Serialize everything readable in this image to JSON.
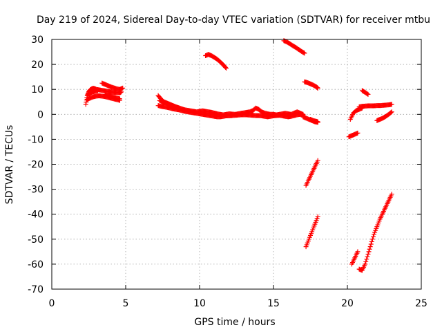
{
  "chart_data": {
    "type": "scatter",
    "title": "Day 219 of 2024, Sidereal Day-to-day VTEC variation (SDTVAR) for receiver mtbu",
    "xlabel": "GPS time / hours",
    "ylabel": "SDTVAR / TECUs",
    "xlim": [
      0,
      25
    ],
    "ylim": [
      -70,
      30
    ],
    "xticks": [
      0,
      5,
      10,
      15,
      20,
      25
    ],
    "yticks": [
      -70,
      -60,
      -50,
      -40,
      -30,
      -20,
      -10,
      0,
      10,
      20,
      30
    ],
    "grid": true,
    "marker": "plus",
    "color": "#ff0000",
    "segments": [
      {
        "x": [
          2.3,
          2.4,
          2.5,
          2.6,
          2.7,
          2.8,
          2.9,
          3.0,
          3.2,
          3.4,
          3.6,
          3.8,
          4.0,
          4.2,
          4.4,
          4.6,
          4.7
        ],
        "y": [
          4.0,
          7.5,
          9.0,
          9.8,
          10.2,
          10.4,
          10.3,
          10.0,
          9.8,
          9.6,
          9.4,
          9.2,
          9.0,
          8.8,
          8.7,
          8.6,
          9.0
        ]
      },
      {
        "x": [
          2.4,
          2.6,
          2.8,
          3.0,
          3.2,
          3.4,
          3.6,
          3.8,
          4.0,
          4.2,
          4.4,
          4.6
        ],
        "y": [
          6.0,
          6.5,
          7.0,
          7.3,
          7.4,
          7.3,
          7.1,
          6.8,
          6.5,
          6.2,
          5.9,
          5.6
        ]
      },
      {
        "x": [
          2.5,
          2.6,
          2.7,
          2.9,
          3.1
        ],
        "y": [
          8.0,
          8.5,
          8.8,
          9.2,
          9.4
        ]
      },
      {
        "x": [
          3.4,
          3.6,
          3.8,
          4.0,
          4.2,
          4.4,
          4.6,
          4.8
        ],
        "y": [
          12.5,
          12.0,
          11.5,
          11.0,
          10.6,
          10.2,
          10.0,
          10.5
        ]
      },
      {
        "x": [
          3.6,
          3.8,
          4.0,
          4.2,
          4.4,
          4.6
        ],
        "y": [
          8.0,
          7.6,
          7.2,
          6.8,
          6.5,
          6.2
        ]
      },
      {
        "x": [
          7.2,
          7.4,
          7.6,
          7.8,
          8.0,
          8.2,
          8.4,
          8.6,
          8.8,
          9.0,
          9.2,
          9.4,
          9.6,
          9.8,
          10.0,
          10.2,
          10.4,
          10.6,
          10.8,
          11.0,
          11.2,
          11.4,
          11.6,
          11.8,
          12.0,
          12.2,
          12.4,
          12.6,
          12.8,
          13.0,
          13.2,
          13.4,
          13.6,
          13.8,
          14.0,
          14.2,
          14.4,
          14.6,
          14.8,
          15.0,
          15.2,
          15.4,
          15.6,
          15.8,
          16.0,
          16.2,
          16.4,
          16.6,
          16.8,
          17.0
        ],
        "y": [
          7.5,
          6.0,
          5.0,
          4.5,
          4.0,
          3.5,
          3.0,
          2.6,
          2.2,
          1.8,
          1.6,
          1.4,
          1.2,
          1.0,
          1.2,
          1.4,
          1.2,
          1.0,
          0.8,
          0.5,
          0.2,
          0.0,
          -0.2,
          0.0,
          0.2,
          0.1,
          0.0,
          0.2,
          0.4,
          0.6,
          0.8,
          1.0,
          1.5,
          2.5,
          2.0,
          1.0,
          0.5,
          0.2,
          0.0,
          0.0,
          -0.2,
          0.0,
          0.2,
          0.4,
          0.2,
          0.0,
          0.5,
          1.0,
          0.5,
          0.0
        ]
      },
      {
        "x": [
          7.2,
          7.4,
          7.6,
          7.8,
          8.0,
          8.2,
          8.4,
          8.6,
          8.8,
          9.0,
          9.2,
          9.4,
          9.6,
          9.8,
          10.0,
          10.2,
          10.4,
          10.6,
          10.8,
          11.0,
          11.2,
          11.4,
          11.6,
          11.8,
          12.0,
          12.2,
          12.4,
          12.6,
          12.8,
          13.0,
          13.2,
          13.4,
          13.6,
          13.8,
          14.0,
          14.2,
          14.4,
          14.6,
          14.8,
          15.0,
          15.2,
          15.4,
          15.6,
          15.8,
          16.0,
          16.2,
          16.4,
          16.6,
          16.8,
          17.0
        ],
        "y": [
          3.5,
          3.2,
          3.0,
          2.8,
          2.5,
          2.2,
          2.0,
          1.8,
          1.5,
          1.2,
          1.0,
          0.8,
          0.6,
          0.4,
          0.2,
          0.0,
          -0.2,
          -0.4,
          -0.6,
          -0.8,
          -1.0,
          -1.0,
          -0.8,
          -0.6,
          -0.6,
          -0.5,
          -0.4,
          -0.3,
          -0.2,
          -0.2,
          -0.2,
          -0.3,
          -0.4,
          -0.5,
          -0.5,
          -0.6,
          -0.8,
          -1.0,
          -0.8,
          -0.6,
          -0.5,
          -0.4,
          -0.6,
          -0.8,
          -1.0,
          -0.8,
          -0.5,
          -0.2,
          0.0,
          -0.2
        ]
      },
      {
        "x": [
          7.3,
          7.5,
          7.7,
          7.9,
          8.1,
          8.3,
          8.5
        ],
        "y": [
          5.5,
          5.0,
          4.5,
          4.0,
          3.6,
          3.2,
          2.8
        ]
      },
      {
        "x": [
          10.4,
          10.6,
          10.8,
          11.0,
          11.2,
          11.4,
          11.6,
          11.8
        ],
        "y": [
          23.5,
          24.0,
          23.5,
          22.8,
          22.0,
          21.0,
          19.8,
          18.5
        ]
      },
      {
        "x": [
          15.7,
          15.9,
          16.1,
          16.3,
          16.5,
          16.7,
          16.9,
          17.1
        ],
        "y": [
          29.5,
          29.0,
          28.3,
          27.5,
          26.8,
          26.0,
          25.2,
          24.5
        ]
      },
      {
        "x": [
          17.1,
          17.3,
          17.5,
          17.7,
          17.9,
          18.0
        ],
        "y": [
          13.0,
          12.7,
          12.2,
          11.7,
          11.0,
          10.5
        ]
      },
      {
        "x": [
          17.0,
          17.2,
          17.4,
          17.6,
          17.8,
          18.0
        ],
        "y": [
          -1.0,
          -1.5,
          -2.0,
          -2.5,
          -3.0,
          -3.2
        ]
      },
      {
        "x": [
          17.5,
          17.7,
          17.9,
          18.0
        ],
        "y": [
          -2.0,
          -2.5,
          -2.8,
          -3.0
        ]
      },
      {
        "x": [
          17.2,
          17.4,
          17.6,
          17.8,
          18.0
        ],
        "y": [
          -28.5,
          -26.0,
          -23.5,
          -21.0,
          -18.5
        ]
      },
      {
        "x": [
          17.2,
          17.4,
          17.6,
          17.8,
          18.0
        ],
        "y": [
          -53.0,
          -50.0,
          -47.0,
          -44.0,
          -41.0
        ]
      },
      {
        "x": [
          20.1,
          20.3,
          20.5,
          20.7
        ],
        "y": [
          -9.0,
          -8.5,
          -8.0,
          -7.5
        ]
      },
      {
        "x": [
          20.2,
          20.4,
          20.6,
          20.8,
          21.0
        ],
        "y": [
          -2.0,
          0.5,
          1.5,
          2.0,
          2.5
        ]
      },
      {
        "x": [
          20.8,
          21.0,
          21.2,
          21.4,
          21.6,
          21.8,
          22.0,
          22.2,
          22.4,
          22.6,
          22.8,
          23.0
        ],
        "y": [
          3.0,
          3.2,
          3.3,
          3.4,
          3.4,
          3.4,
          3.5,
          3.5,
          3.6,
          3.7,
          3.8,
          4.0
        ]
      },
      {
        "x": [
          21.0,
          21.2,
          21.4
        ],
        "y": [
          9.5,
          8.8,
          8.0
        ]
      },
      {
        "x": [
          22.0,
          22.2,
          22.4,
          22.6,
          22.8,
          23.0
        ],
        "y": [
          -2.5,
          -2.0,
          -1.5,
          -0.8,
          0.0,
          1.0
        ]
      },
      {
        "x": [
          20.3,
          20.5,
          20.7
        ],
        "y": [
          -60.0,
          -57.5,
          -55.0
        ]
      },
      {
        "x": [
          20.8,
          21.0,
          21.2,
          21.4,
          21.6,
          21.8,
          22.0,
          22.2,
          22.4,
          22.6,
          22.8,
          23.0
        ],
        "y": [
          -62.0,
          -62.5,
          -60.0,
          -56.0,
          -52.0,
          -48.0,
          -45.0,
          -42.0,
          -39.5,
          -37.0,
          -34.5,
          -32.0
        ]
      }
    ]
  }
}
